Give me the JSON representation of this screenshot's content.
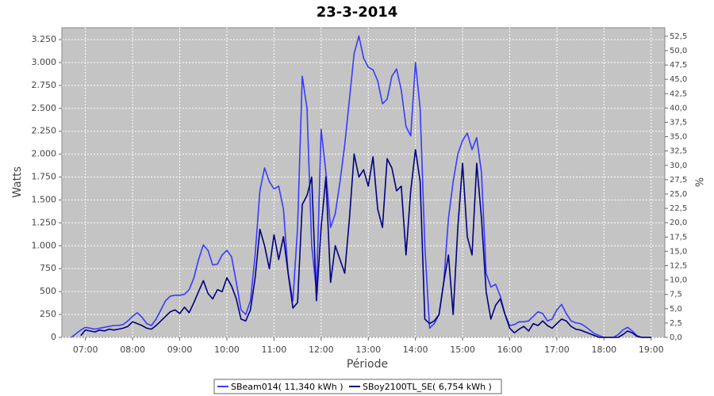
{
  "chart_data": {
    "type": "line",
    "title": "23-3-2014",
    "xlabel": "Période",
    "ylabel": "Watts",
    "y2label": "%",
    "x": [
      6.7,
      6.8,
      6.9,
      7.0,
      7.1,
      7.2,
      7.3,
      7.4,
      7.5,
      7.6,
      7.7,
      7.8,
      7.9,
      8.0,
      8.1,
      8.2,
      8.3,
      8.4,
      8.5,
      8.6,
      8.7,
      8.8,
      8.9,
      9.0,
      9.1,
      9.2,
      9.3,
      9.4,
      9.5,
      9.6,
      9.7,
      9.8,
      9.9,
      10.0,
      10.1,
      10.2,
      10.3,
      10.4,
      10.5,
      10.6,
      10.7,
      10.8,
      10.9,
      11.0,
      11.1,
      11.2,
      11.3,
      11.4,
      11.5,
      11.6,
      11.7,
      11.8,
      11.9,
      12.0,
      12.1,
      12.2,
      12.3,
      12.4,
      12.5,
      12.6,
      12.7,
      12.8,
      12.9,
      13.0,
      13.1,
      13.2,
      13.3,
      13.4,
      13.5,
      13.6,
      13.7,
      13.8,
      13.9,
      14.0,
      14.1,
      14.2,
      14.3,
      14.4,
      14.5,
      14.6,
      14.7,
      14.8,
      14.9,
      15.0,
      15.1,
      15.2,
      15.3,
      15.4,
      15.5,
      15.6,
      15.7,
      15.8,
      15.9,
      16.0,
      16.1,
      16.2,
      16.3,
      16.4,
      16.5,
      16.6,
      16.7,
      16.8,
      16.9,
      17.0,
      17.1,
      17.2,
      17.3,
      17.4,
      17.5,
      17.6,
      17.7,
      17.8,
      17.9,
      18.0,
      18.1,
      18.2,
      18.3,
      18.4,
      18.5,
      18.6,
      18.7,
      18.8,
      18.9,
      19.0
    ],
    "series": [
      {
        "name": "SBeam014( 11,340 kWh )",
        "color": "#3a3aff",
        "values": [
          0,
          40,
          80,
          110,
          100,
          90,
          100,
          110,
          120,
          130,
          130,
          140,
          180,
          230,
          270,
          220,
          150,
          130,
          200,
          300,
          400,
          450,
          460,
          460,
          470,
          520,
          650,
          850,
          1010,
          950,
          790,
          800,
          900,
          950,
          880,
          600,
          300,
          250,
          400,
          900,
          1600,
          1850,
          1700,
          1620,
          1650,
          1400,
          700,
          400,
          1200,
          2850,
          2500,
          1000,
          500,
          2270,
          1800,
          1200,
          1350,
          1700,
          2100,
          2600,
          3100,
          3290,
          3050,
          2950,
          2920,
          2800,
          2550,
          2600,
          2850,
          2930,
          2700,
          2300,
          2200,
          3000,
          2500,
          1000,
          100,
          150,
          250,
          600,
          1300,
          1700,
          2000,
          2150,
          2230,
          2050,
          2180,
          1800,
          700,
          550,
          580,
          450,
          250,
          130,
          140,
          170,
          170,
          180,
          230,
          280,
          260,
          180,
          200,
          300,
          360,
          260,
          180,
          160,
          150,
          120,
          80,
          40,
          20,
          0,
          0,
          0,
          30,
          80,
          110,
          70,
          20,
          0,
          0,
          0
        ]
      },
      {
        "name": "SBoy2100TL_SE( 6,754 kWh )",
        "color": "#000080",
        "values": [
          null,
          null,
          20,
          80,
          70,
          60,
          80,
          70,
          90,
          80,
          90,
          100,
          120,
          170,
          150,
          130,
          100,
          90,
          130,
          180,
          230,
          280,
          300,
          260,
          330,
          270,
          380,
          500,
          620,
          480,
          420,
          520,
          500,
          650,
          560,
          420,
          200,
          180,
          300,
          650,
          1180,
          1000,
          750,
          1120,
          850,
          1100,
          700,
          320,
          380,
          1450,
          1550,
          1750,
          400,
          1200,
          1750,
          600,
          1000,
          850,
          700,
          1300,
          2000,
          1750,
          1830,
          1650,
          1970,
          1400,
          1200,
          1950,
          1850,
          1600,
          1650,
          900,
          1600,
          2050,
          1700,
          200,
          150,
          180,
          250,
          600,
          900,
          250,
          1200,
          1900,
          1100,
          900,
          1900,
          1300,
          500,
          200,
          350,
          420,
          250,
          100,
          50,
          90,
          120,
          70,
          150,
          130,
          180,
          130,
          100,
          150,
          200,
          180,
          120,
          90,
          80,
          60,
          40,
          20,
          0,
          0,
          0,
          0,
          0,
          30,
          70,
          50,
          10,
          0,
          0,
          0
        ]
      }
    ],
    "xlim": [
      6.5,
      19.29
    ],
    "xticks": [
      {
        "value": 7,
        "label": "07:00"
      },
      {
        "value": 8,
        "label": "08:00"
      },
      {
        "value": 9,
        "label": "09:00"
      },
      {
        "value": 10,
        "label": "10:00"
      },
      {
        "value": 11,
        "label": "11:00"
      },
      {
        "value": 12,
        "label": "12:00"
      },
      {
        "value": 13,
        "label": "13:00"
      },
      {
        "value": 14,
        "label": "14:00"
      },
      {
        "value": 15,
        "label": "15:00"
      },
      {
        "value": 16,
        "label": "16:00"
      },
      {
        "value": 17,
        "label": "17:00"
      },
      {
        "value": 18,
        "label": "18:00"
      },
      {
        "value": 19,
        "label": "19:00"
      }
    ],
    "ylim": [
      0,
      3380
    ],
    "yticks": [
      0,
      250,
      500,
      750,
      {
        "value": 1000,
        "label": "1.000"
      },
      {
        "value": 1250,
        "label": "1.250"
      },
      {
        "value": 1500,
        "label": "1.500"
      },
      {
        "value": 1750,
        "label": "1.750"
      },
      {
        "value": 2000,
        "label": "2.000"
      },
      {
        "value": 2250,
        "label": "2.250"
      },
      {
        "value": 2500,
        "label": "2.500"
      },
      {
        "value": 2750,
        "label": "2.750"
      },
      {
        "value": 3000,
        "label": "3.000"
      },
      {
        "value": 3250,
        "label": "3.250"
      }
    ],
    "y2lim": [
      0,
      54
    ],
    "y2ticks": [
      {
        "value": 0,
        "label": "0,0"
      },
      {
        "value": 2.5,
        "label": "2,5"
      },
      {
        "value": 5,
        "label": "5,0"
      },
      {
        "value": 7.5,
        "label": "7,5"
      },
      {
        "value": 10,
        "label": "10,0"
      },
      {
        "value": 12.5,
        "label": "12,5"
      },
      {
        "value": 15,
        "label": "15,0"
      },
      {
        "value": 17.5,
        "label": "17,5"
      },
      {
        "value": 20,
        "label": "20,0"
      },
      {
        "value": 22.5,
        "label": "22,5"
      },
      {
        "value": 25,
        "label": "25,0"
      },
      {
        "value": 27.5,
        "label": "27,5"
      },
      {
        "value": 30,
        "label": "30,0"
      },
      {
        "value": 32.5,
        "label": "32,5"
      },
      {
        "value": 35,
        "label": "35,0"
      },
      {
        "value": 37.5,
        "label": "37,5"
      },
      {
        "value": 40,
        "label": "40,0"
      },
      {
        "value": 42.5,
        "label": "42,5"
      },
      {
        "value": 45,
        "label": "45,0"
      },
      {
        "value": 47.5,
        "label": "47,5"
      },
      {
        "value": 50,
        "label": "50,0"
      },
      {
        "value": 52.5,
        "label": "52,5"
      }
    ],
    "grid": true,
    "legend": "bottom"
  }
}
